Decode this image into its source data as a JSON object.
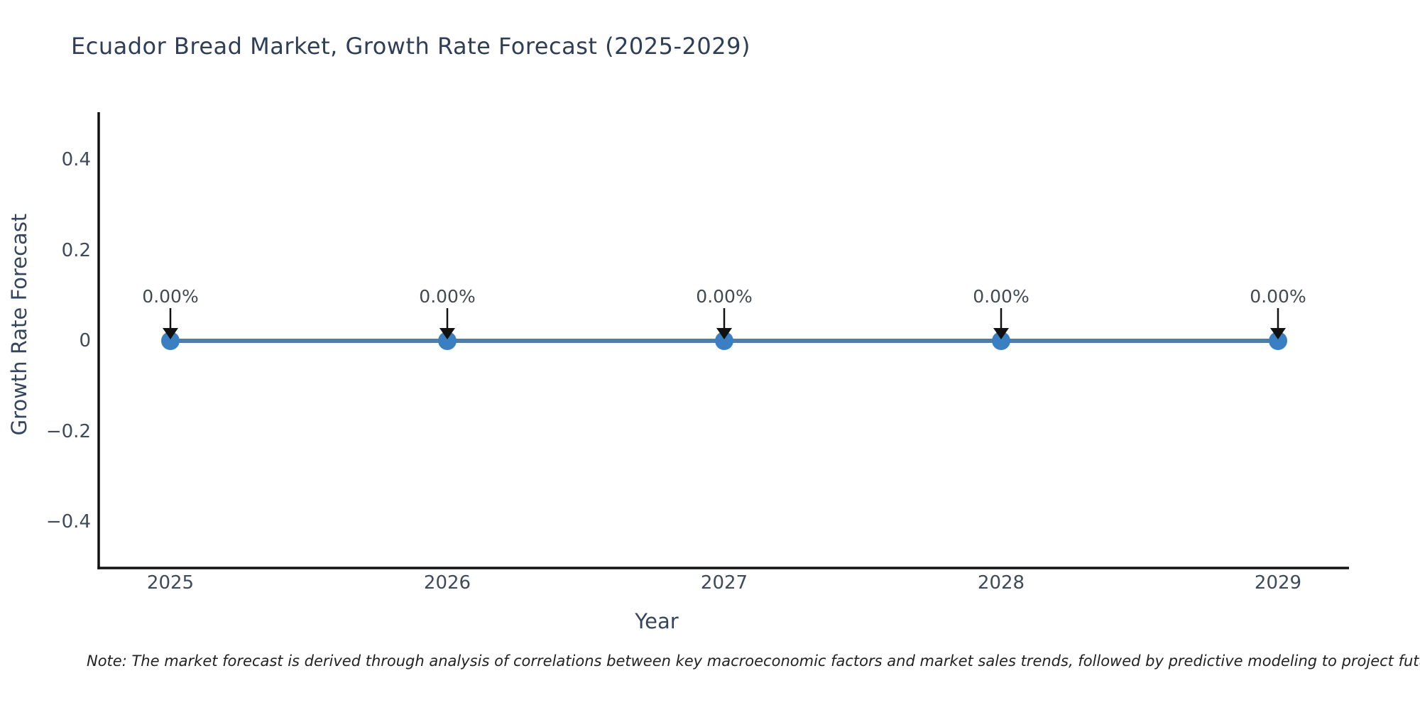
{
  "chart_data": {
    "type": "line",
    "title": "Ecuador Bread Market, Growth Rate Forecast (2025-2029)",
    "xlabel": "Year",
    "ylabel": "Growth Rate Forecast",
    "x": [
      2025,
      2026,
      2027,
      2028,
      2029
    ],
    "categories": [
      "2025",
      "2026",
      "2027",
      "2028",
      "2029"
    ],
    "series": [
      {
        "name": "Growth Rate Forecast",
        "values": [
          0,
          0,
          0,
          0,
          0
        ]
      }
    ],
    "point_labels": [
      "0.00%",
      "0.00%",
      "0.00%",
      "0.00%",
      "0.00%"
    ],
    "ylim": [
      -0.5,
      0.5
    ],
    "yticks": [
      {
        "label": "0.4",
        "value": 0.4
      },
      {
        "label": "0.2",
        "value": 0.2
      },
      {
        "label": "0",
        "value": 0
      },
      {
        "label": "−0.2",
        "value": -0.2
      },
      {
        "label": "−0.4",
        "value": -0.4
      }
    ],
    "grid": false,
    "legend": "none",
    "line_color": "#4f7da8",
    "marker_color": "#3a7fc1",
    "spine_color": "#111111",
    "annotation_arrow_color": "#111111"
  },
  "note": {
    "text": "Note: The market forecast is derived through analysis of correlations between key macroeconomic factors and market sales trends, followed by predictive modeling to project future sales"
  }
}
